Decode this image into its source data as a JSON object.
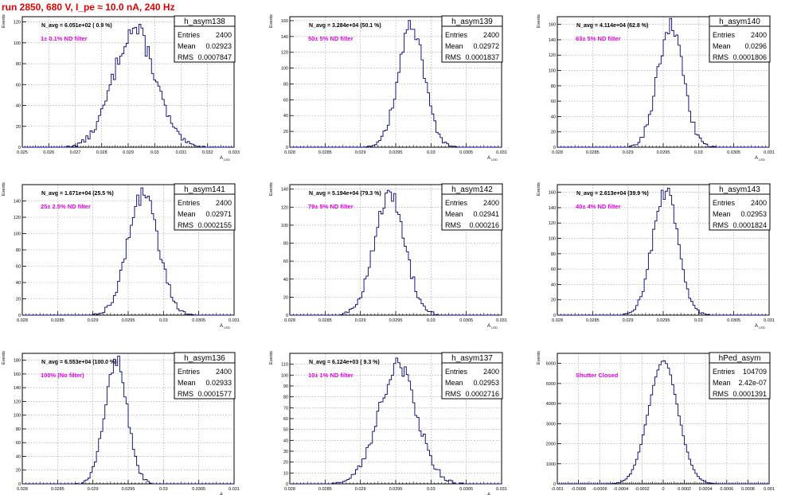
{
  "run_title": "run 2850,   680 V, I_pe ≈ 10.0 nA, 240 Hz",
  "chart_data": [
    {
      "type": "histogram",
      "stat_title": "h_asym138",
      "n_avg_label": "N_avg = 6.051e+02 ( 0.9 %)",
      "filter_label": "1± 0.1% ND filter",
      "stats": {
        "entries": "2400",
        "mean": "0.02923",
        "rms": "0.0007847"
      },
      "xlabel": "A_{LED}",
      "ylabel": "Events",
      "xlim": [
        0.025,
        0.033
      ],
      "ylim": [
        0,
        125
      ],
      "xticks": [
        "0.025",
        "0.026",
        "0.027",
        "0.028",
        "0.029",
        "0.03",
        "0.031",
        "0.032",
        "0.033"
      ],
      "yticks": [
        "0",
        "20",
        "40",
        "60",
        "80",
        "100",
        "120"
      ],
      "dist": {
        "mean": 0.02923,
        "rms": 0.0007847,
        "peak": 113,
        "bins": 100
      }
    },
    {
      "type": "histogram",
      "stat_title": "h_asym139",
      "n_avg_label": "N_avg = 3.284e+04 (50.1 %)",
      "filter_label": "50± 5% ND filter",
      "stats": {
        "entries": "2400",
        "mean": "0.02972",
        "rms": "0.0001837"
      },
      "xlabel": "A_{LED}",
      "ylabel": "Events",
      "xlim": [
        0.028,
        0.031
      ],
      "ylim": [
        0,
        165
      ],
      "xticks": [
        "0.028",
        "0.0285",
        "0.029",
        "0.0295",
        "0.03",
        "0.0305",
        "0.031"
      ],
      "yticks": [
        "0",
        "20",
        "40",
        "60",
        "80",
        "100",
        "120",
        "140",
        "160"
      ],
      "dist": {
        "mean": 0.02972,
        "rms": 0.0001837,
        "peak": 152,
        "bins": 100
      }
    },
    {
      "type": "histogram",
      "stat_title": "h_asym140",
      "n_avg_label": "N_avg = 4.114e+04 (62.8 %)",
      "filter_label": "63± 5% ND filter",
      "stats": {
        "entries": "2400",
        "mean": "0.0296",
        "rms": "0.0001806"
      },
      "xlabel": "A_{LED}",
      "ylabel": "Events",
      "xlim": [
        0.028,
        0.031
      ],
      "ylim": [
        0,
        170
      ],
      "xticks": [
        "0.028",
        "0.0285",
        "0.029",
        "0.0295",
        "0.03",
        "0.0305",
        "0.031"
      ],
      "yticks": [
        "0",
        "20",
        "40",
        "60",
        "80",
        "100",
        "120",
        "140",
        "160"
      ],
      "dist": {
        "mean": 0.0296,
        "rms": 0.0001806,
        "peak": 158,
        "bins": 100
      }
    },
    {
      "type": "histogram",
      "stat_title": "h_asym141",
      "n_avg_label": "N_avg = 1.671e+04 (25.5 %)",
      "filter_label": "25± 2.5% ND filter",
      "stats": {
        "entries": "2400",
        "mean": "0.02971",
        "rms": "0.0002155"
      },
      "xlabel": "A_{LED}",
      "ylabel": "Events",
      "xlim": [
        0.028,
        0.031
      ],
      "ylim": [
        0,
        160
      ],
      "xticks": [
        "0.028",
        "0.0285",
        "0.029",
        "0.0295",
        "0.03",
        "0.0305",
        "0.031"
      ],
      "yticks": [
        "0",
        "20",
        "40",
        "60",
        "80",
        "100",
        "120",
        "140"
      ],
      "dist": {
        "mean": 0.02971,
        "rms": 0.0002155,
        "peak": 148,
        "bins": 100
      }
    },
    {
      "type": "histogram",
      "stat_title": "h_asym142",
      "n_avg_label": "N_avg = 5.194e+04 (79.3 %)",
      "filter_label": "79± 5% ND filter",
      "stats": {
        "entries": "2400",
        "mean": "0.02941",
        "rms": "0.000216"
      },
      "xlabel": "A_{LED}",
      "ylabel": "Events",
      "xlim": [
        0.028,
        0.031
      ],
      "ylim": [
        0,
        145
      ],
      "xticks": [
        "0.028",
        "0.0285",
        "0.029",
        "0.0295",
        "0.03",
        "0.0305",
        "0.031"
      ],
      "yticks": [
        "0",
        "20",
        "40",
        "60",
        "80",
        "100",
        "120",
        "140"
      ],
      "dist": {
        "mean": 0.02941,
        "rms": 0.000216,
        "peak": 135,
        "bins": 100
      }
    },
    {
      "type": "histogram",
      "stat_title": "h_asym143",
      "n_avg_label": "N_avg = 2.613e+04 (39.9 %)",
      "filter_label": "40± 4% ND filter",
      "stats": {
        "entries": "2400",
        "mean": "0.02953",
        "rms": "0.0001824"
      },
      "xlabel": "A_{LED}",
      "ylabel": "Events",
      "xlim": [
        0.028,
        0.031
      ],
      "ylim": [
        0,
        170
      ],
      "xticks": [
        "0.028",
        "0.0285",
        "0.029",
        "0.0295",
        "0.03",
        "0.0305",
        "0.031"
      ],
      "yticks": [
        "0",
        "20",
        "40",
        "60",
        "80",
        "100",
        "120",
        "140",
        "160"
      ],
      "dist": {
        "mean": 0.02953,
        "rms": 0.0001824,
        "peak": 160,
        "bins": 100
      }
    },
    {
      "type": "histogram",
      "stat_title": "h_asym136",
      "n_avg_label": "N_avg = 6.553e+04 (100.0 %)",
      "filter_label": "100% (No filter)",
      "stats": {
        "entries": "2400",
        "mean": "0.02933",
        "rms": "0.0001577"
      },
      "xlabel": "A_{LED}",
      "ylabel": "Events",
      "xlim": [
        0.028,
        0.031
      ],
      "ylim": [
        0,
        190
      ],
      "xticks": [
        "0.028",
        "0.0285",
        "0.029",
        "0.0295",
        "0.03",
        "0.0305",
        "0.031"
      ],
      "yticks": [
        "0",
        "20",
        "40",
        "60",
        "80",
        "100",
        "120",
        "140",
        "160",
        "180"
      ],
      "dist": {
        "mean": 0.02933,
        "rms": 0.0001577,
        "peak": 180,
        "bins": 100
      }
    },
    {
      "type": "histogram",
      "stat_title": "h_asym137",
      "n_avg_label": "N_avg = 6.124e+03 ( 9.3 %)",
      "filter_label": "10± 1% ND filter",
      "stats": {
        "entries": "2400",
        "mean": "0.02953",
        "rms": "0.0002716"
      },
      "xlabel": "A_{LED}",
      "ylabel": "Events",
      "xlim": [
        0.028,
        0.031
      ],
      "ylim": [
        0,
        120
      ],
      "xticks": [
        "0.028",
        "0.0285",
        "0.029",
        "0.0295",
        "0.03",
        "0.0305",
        "0.031"
      ],
      "yticks": [
        "0",
        "10",
        "20",
        "30",
        "40",
        "50",
        "60",
        "70",
        "80",
        "90",
        "100",
        "110"
      ],
      "dist": {
        "mean": 0.02953,
        "rms": 0.0002716,
        "peak": 108,
        "bins": 100
      }
    },
    {
      "type": "histogram",
      "stat_title": "hPed_asym",
      "n_avg_label": "",
      "filter_label": "Shutter Closed",
      "stats": {
        "entries": "104709",
        "mean": "2.42e-07",
        "rms": "0.0001391"
      },
      "xlabel": "",
      "ylabel": "Events",
      "xlim": [
        -0.001,
        0.001
      ],
      "ylim": [
        0,
        6500
      ],
      "xticks": [
        "-0.001",
        "-0.0008",
        "-0.0006",
        "-0.0004",
        "-0.0002",
        "0",
        "0.0002",
        "0.0004",
        "0.0006",
        "0.0008",
        "0.001"
      ],
      "yticks": [
        "0",
        "1000",
        "2000",
        "3000",
        "4000",
        "5000",
        "6000"
      ],
      "dist": {
        "mean": 0.0,
        "rms": 0.0001391,
        "peak": 6100,
        "bins": 100
      }
    }
  ],
  "colors": {
    "title": "#e00000",
    "filter_label": "#e000e0",
    "line": "#00007a",
    "axis": "#000000",
    "grid": "#999999"
  }
}
